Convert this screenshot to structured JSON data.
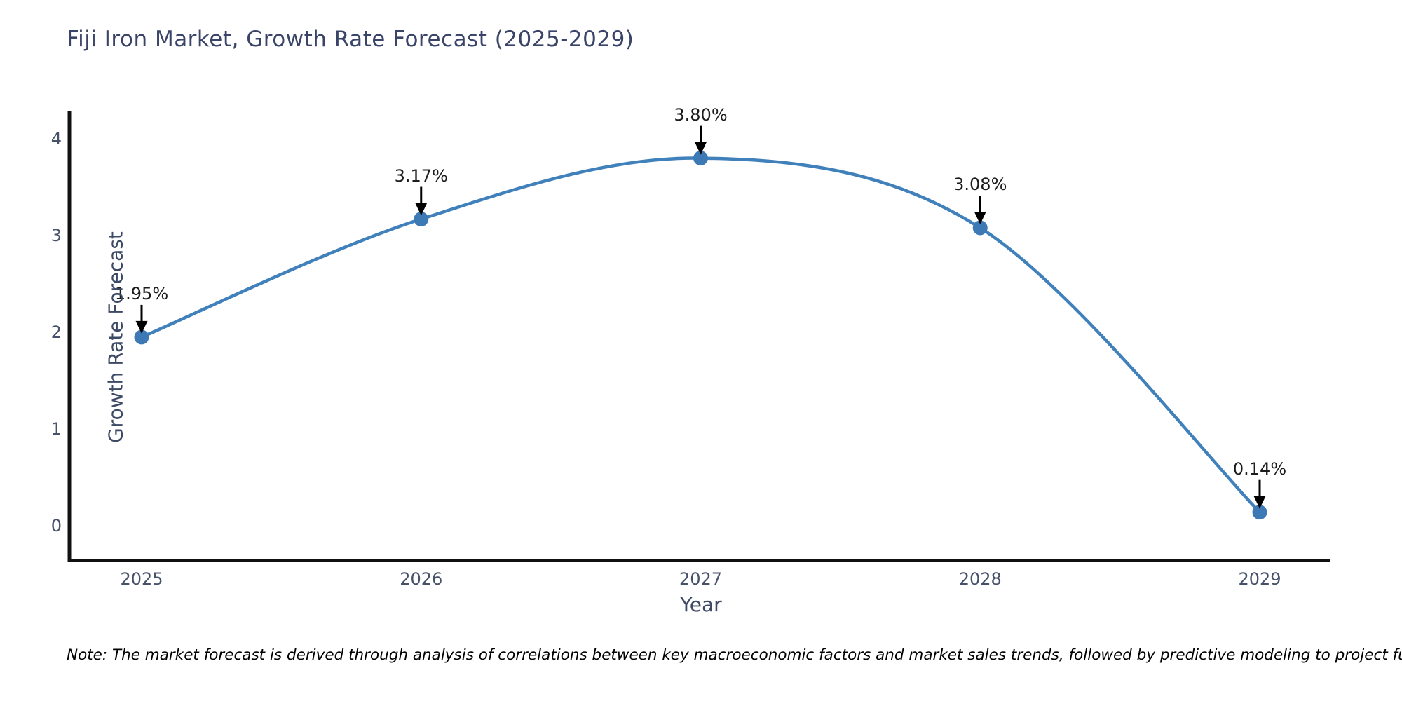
{
  "chart_data": {
    "type": "line",
    "title": "Fiji Iron Market, Growth Rate Forecast (2025-2029)",
    "xlabel": "Year",
    "ylabel": "Growth Rate Forecast",
    "categories": [
      "2025",
      "2026",
      "2027",
      "2028",
      "2029"
    ],
    "values": [
      1.95,
      3.17,
      3.8,
      3.08,
      0.14
    ],
    "point_labels": [
      "1.95%",
      "3.17%",
      "3.80%",
      "3.08%",
      "0.14%"
    ],
    "yticks": [
      0,
      1,
      2,
      3,
      4
    ],
    "ylim": [
      -0.38,
      4.35
    ],
    "line_shape": "spline",
    "grid": false,
    "legend": "none",
    "colors": {
      "line": "#4181bb",
      "marker": "#3d7ab5",
      "axis": "#111111",
      "title_text": "#3a4468",
      "tick_text": "#47526a",
      "annotation": "#1c1c1c"
    }
  },
  "footnote": "Note: The market forecast is derived through analysis of correlations between key macroeconomic factors and market sales trends, followed by predictive modeling to project future sales."
}
